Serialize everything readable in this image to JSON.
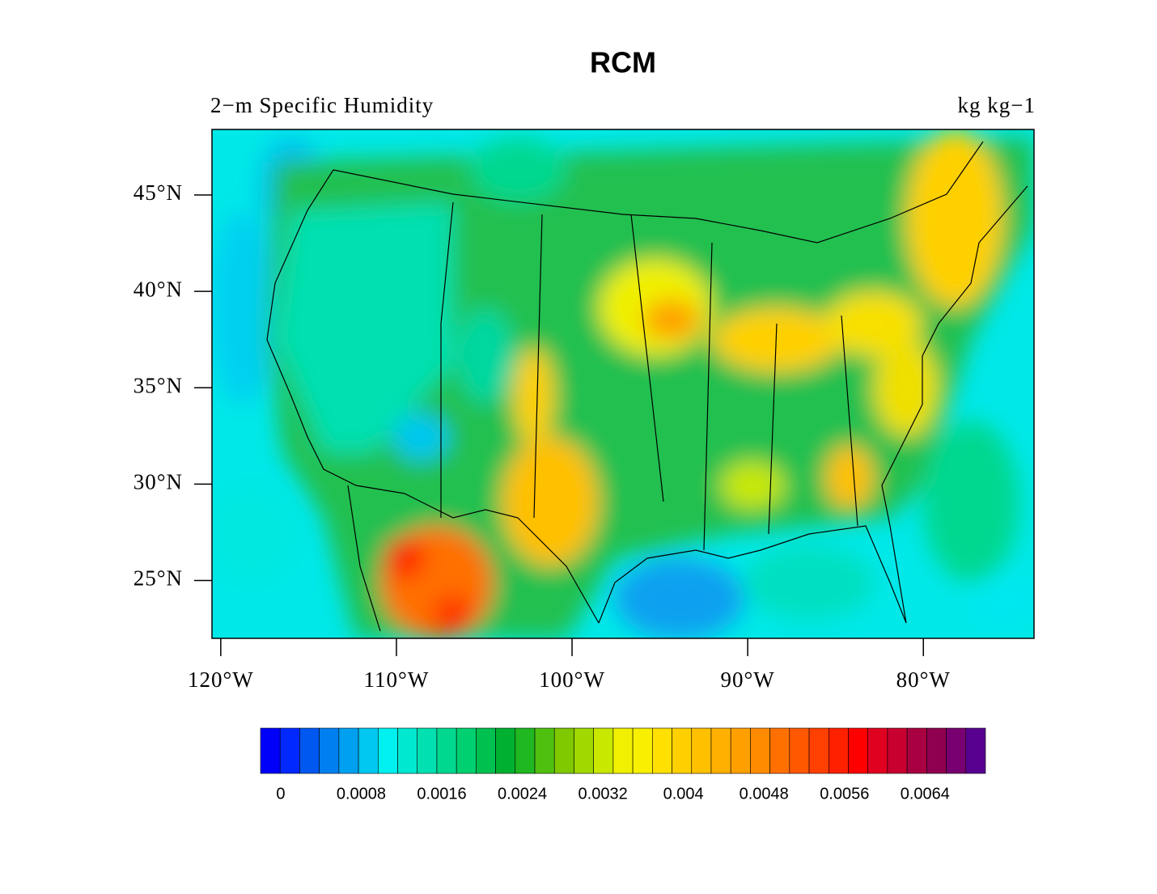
{
  "chart_data": {
    "type": "map",
    "title": "RCM",
    "left_string": "2−m Specific Humidity",
    "right_string": "kg kg−1",
    "xlim": [
      -120.5,
      -73.7
    ],
    "ylim": [
      22,
      48.4
    ],
    "xticks": [
      {
        "value": -120,
        "label": "120°W"
      },
      {
        "value": -110,
        "label": "110°W"
      },
      {
        "value": -100,
        "label": "100°W"
      },
      {
        "value": -90,
        "label": "90°W"
      },
      {
        "value": -80,
        "label": "80°W"
      }
    ],
    "yticks": [
      {
        "value": 25,
        "label": "25°N"
      },
      {
        "value": 30,
        "label": "30°N"
      },
      {
        "value": 35,
        "label": "35°N"
      },
      {
        "value": 40,
        "label": "40°N"
      },
      {
        "value": 45,
        "label": "45°N"
      }
    ],
    "colorbar": {
      "lim": [
        -0.0002,
        0.007
      ],
      "ticks": [
        0,
        0.0008,
        0.0016,
        0.0024,
        0.0032,
        0.004,
        0.0048,
        0.0056,
        0.0064
      ],
      "colors": [
        "#0000f8",
        "#0028ff",
        "#0058f0",
        "#0080f0",
        "#00a0f0",
        "#00c8f0",
        "#00f0f0",
        "#00e8d0",
        "#00e0b0",
        "#00d890",
        "#00d070",
        "#00c050",
        "#00b030",
        "#20b820",
        "#50c010",
        "#80c800",
        "#a0d800",
        "#c8e800",
        "#f0f000",
        "#f8f000",
        "#ffe000",
        "#ffd000",
        "#ffc000",
        "#ffb000",
        "#ffa000",
        "#ff8c00",
        "#ff7000",
        "#ff5800",
        "#ff4000",
        "#ff2000",
        "#ff0000",
        "#e00020",
        "#c80030",
        "#a80040",
        "#900050",
        "#780070",
        "#580090"
      ]
    }
  }
}
